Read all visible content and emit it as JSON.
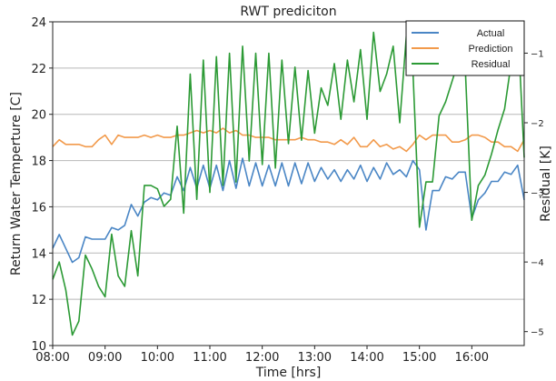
{
  "chart_data": {
    "type": "line",
    "title": "RWT prediciton",
    "xlabel": "Time [hrs]",
    "ylabel": "Return Water Temperture [C]",
    "y2label": "Residual [K]",
    "xticks": [
      "08:00",
      "09:00",
      "10:00",
      "11:00",
      "12:00",
      "13:00",
      "14:00",
      "15:00",
      "16:00"
    ],
    "x_unit": "hours",
    "xlim": [
      8.0,
      17.0
    ],
    "ylim": [
      10,
      24
    ],
    "yticks": [
      10,
      12,
      14,
      16,
      18,
      20,
      22,
      24
    ],
    "y2lim": [
      -5.2,
      -0.55
    ],
    "y2ticks": [
      -5,
      -4,
      -3,
      -2,
      -1
    ],
    "grid": true,
    "legend_position": "top-right",
    "series": [
      {
        "name": "Actual",
        "axis": "left",
        "color": "#4a86c5",
        "x": [
          8.0,
          8.125,
          8.25,
          8.375,
          8.5,
          8.625,
          8.75,
          8.875,
          9.0,
          9.125,
          9.25,
          9.375,
          9.5,
          9.625,
          9.75,
          9.875,
          10.0,
          10.125,
          10.25,
          10.375,
          10.5,
          10.625,
          10.75,
          10.875,
          11.0,
          11.125,
          11.25,
          11.375,
          11.5,
          11.625,
          11.75,
          11.875,
          12.0,
          12.125,
          12.25,
          12.375,
          12.5,
          12.625,
          12.75,
          12.875,
          13.0,
          13.125,
          13.25,
          13.375,
          13.5,
          13.625,
          13.75,
          13.875,
          14.0,
          14.125,
          14.25,
          14.375,
          14.5,
          14.625,
          14.75,
          14.875,
          15.0,
          15.125,
          15.25,
          15.375,
          15.5,
          15.625,
          15.75,
          15.875,
          16.0,
          16.125,
          16.25,
          16.375,
          16.5,
          16.625,
          16.75,
          16.875,
          17.0
        ],
        "y": [
          14.2,
          14.8,
          14.2,
          13.6,
          13.8,
          14.7,
          14.6,
          14.6,
          14.6,
          15.1,
          15.0,
          15.2,
          16.1,
          15.6,
          16.2,
          16.4,
          16.3,
          16.6,
          16.5,
          17.3,
          16.7,
          17.7,
          16.8,
          17.8,
          16.8,
          17.8,
          16.7,
          18.0,
          16.8,
          18.1,
          16.9,
          17.9,
          16.9,
          17.8,
          16.9,
          17.9,
          16.9,
          17.9,
          17.0,
          17.9,
          17.1,
          17.7,
          17.2,
          17.6,
          17.1,
          17.6,
          17.2,
          17.8,
          17.1,
          17.7,
          17.2,
          17.9,
          17.4,
          17.6,
          17.3,
          18.0,
          17.6,
          15.0,
          16.7,
          16.7,
          17.3,
          17.2,
          17.5,
          17.5,
          15.5,
          16.3,
          16.6,
          17.1,
          17.1,
          17.5,
          17.4,
          17.8,
          16.3
        ]
      },
      {
        "name": "Prediction",
        "axis": "left",
        "color": "#f29a4b",
        "x": [
          8.0,
          8.125,
          8.25,
          8.375,
          8.5,
          8.625,
          8.75,
          8.875,
          9.0,
          9.125,
          9.25,
          9.375,
          9.5,
          9.625,
          9.75,
          9.875,
          10.0,
          10.125,
          10.25,
          10.375,
          10.5,
          10.625,
          10.75,
          10.875,
          11.0,
          11.125,
          11.25,
          11.375,
          11.5,
          11.625,
          11.75,
          11.875,
          12.0,
          12.125,
          12.25,
          12.375,
          12.5,
          12.625,
          12.75,
          12.875,
          13.0,
          13.125,
          13.25,
          13.375,
          13.5,
          13.625,
          13.75,
          13.875,
          14.0,
          14.125,
          14.25,
          14.375,
          14.5,
          14.625,
          14.75,
          14.875,
          15.0,
          15.125,
          15.25,
          15.375,
          15.5,
          15.625,
          15.75,
          15.875,
          16.0,
          16.125,
          16.25,
          16.375,
          16.5,
          16.625,
          16.75,
          16.875,
          17.0
        ],
        "y": [
          18.6,
          18.9,
          18.7,
          18.7,
          18.7,
          18.6,
          18.6,
          18.9,
          19.1,
          18.7,
          19.1,
          19.0,
          19.0,
          19.0,
          19.1,
          19.0,
          19.1,
          19.0,
          19.0,
          19.1,
          19.1,
          19.2,
          19.3,
          19.2,
          19.3,
          19.2,
          19.4,
          19.2,
          19.3,
          19.1,
          19.1,
          19.0,
          19.0,
          19.0,
          18.9,
          18.9,
          18.9,
          18.9,
          19.0,
          18.9,
          18.9,
          18.8,
          18.8,
          18.7,
          18.9,
          18.7,
          19.0,
          18.6,
          18.6,
          18.9,
          18.6,
          18.7,
          18.5,
          18.6,
          18.4,
          18.7,
          19.1,
          18.9,
          19.1,
          19.1,
          19.1,
          18.8,
          18.8,
          18.9,
          19.1,
          19.1,
          19.0,
          18.8,
          18.8,
          18.6,
          18.6,
          18.4,
          18.9
        ]
      },
      {
        "name": "Residual",
        "axis": "right",
        "color": "#2c9a35",
        "x": [
          8.0,
          8.125,
          8.25,
          8.375,
          8.5,
          8.625,
          8.75,
          8.875,
          9.0,
          9.125,
          9.25,
          9.375,
          9.5,
          9.625,
          9.75,
          9.875,
          10.0,
          10.125,
          10.25,
          10.375,
          10.5,
          10.625,
          10.75,
          10.875,
          11.0,
          11.125,
          11.25,
          11.375,
          11.5,
          11.625,
          11.75,
          11.875,
          12.0,
          12.125,
          12.25,
          12.375,
          12.5,
          12.625,
          12.75,
          12.875,
          13.0,
          13.125,
          13.25,
          13.375,
          13.5,
          13.625,
          13.75,
          13.875,
          14.0,
          14.125,
          14.25,
          14.375,
          14.5,
          14.625,
          14.75,
          14.875,
          15.0,
          15.125,
          15.25,
          15.375,
          15.5,
          15.625,
          15.75,
          15.875,
          16.0,
          16.125,
          16.25,
          16.375,
          16.5,
          16.625,
          16.75,
          16.875,
          17.0
        ],
        "y": [
          -4.25,
          -4.0,
          -4.4,
          -5.05,
          -4.85,
          -3.9,
          -4.1,
          -4.35,
          -4.5,
          -3.6,
          -4.2,
          -4.35,
          -3.55,
          -4.2,
          -2.9,
          -2.9,
          -2.95,
          -3.2,
          -3.1,
          -2.05,
          -3.3,
          -1.3,
          -3.1,
          -1.1,
          -3.0,
          -1.05,
          -2.9,
          -1.0,
          -2.85,
          -0.9,
          -2.55,
          -1.0,
          -2.6,
          -1.0,
          -2.65,
          -1.1,
          -2.3,
          -1.2,
          -2.25,
          -1.25,
          -2.15,
          -1.5,
          -1.75,
          -1.15,
          -1.95,
          -1.1,
          -1.7,
          -0.95,
          -1.95,
          -0.7,
          -1.55,
          -1.3,
          -0.9,
          -2.0,
          -0.75,
          -1.25,
          -3.5,
          -2.85,
          -2.85,
          -1.9,
          -1.7,
          -1.4,
          -1.1,
          -1.2,
          -3.4,
          -2.9,
          -2.75,
          -2.45,
          -2.1,
          -1.8,
          -1.15,
          -0.55,
          -2.5
        ]
      }
    ]
  }
}
